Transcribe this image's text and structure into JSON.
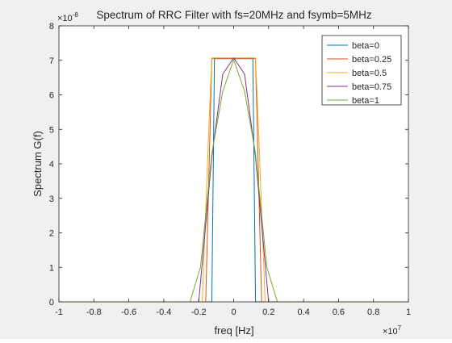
{
  "chart_data": {
    "type": "line",
    "title": "Spectrum of RRC Filter with fs=20MHz and fsymb=5MHz",
    "xlabel": "freq [Hz]",
    "ylabel": "Spectrum G(f)",
    "x_exponent_label": "×10",
    "x_exponent": "7",
    "y_exponent_label": "×10",
    "y_exponent": "-8",
    "xlim": [
      -1,
      1
    ],
    "ylim": [
      0,
      8
    ],
    "xticks": [
      -1,
      -0.8,
      -0.6,
      -0.4,
      -0.2,
      0,
      0.2,
      0.4,
      0.6,
      0.8,
      1
    ],
    "xtick_labels": [
      "-1",
      "-0.8",
      "-0.6",
      "-0.4",
      "-0.2",
      "0",
      "0.2",
      "0.4",
      "0.6",
      "0.8",
      "1"
    ],
    "yticks": [
      0,
      1,
      2,
      3,
      4,
      5,
      6,
      7,
      8
    ],
    "ytick_labels": [
      "0",
      "1",
      "2",
      "3",
      "4",
      "5",
      "6",
      "7",
      "8"
    ],
    "grid": false,
    "legend_position": "top-right",
    "series": [
      {
        "name": "beta=0",
        "color": "#0072bd",
        "x": [
          -1,
          -0.125,
          -0.11,
          0.11,
          0.125,
          1
        ],
        "y": [
          0,
          0,
          7.05,
          7.05,
          0,
          0
        ]
      },
      {
        "name": "beta=0.25",
        "color": "#d95319",
        "x": [
          -1,
          -0.16,
          -0.125,
          0.125,
          0.16,
          1
        ],
        "y": [
          0,
          0,
          7.05,
          7.05,
          0,
          0
        ]
      },
      {
        "name": "beta=0.5",
        "color": "#edb120",
        "x": [
          -1,
          -0.18,
          -0.14,
          -0.125,
          0.125,
          0.14,
          0.18,
          1
        ],
        "y": [
          0,
          0,
          5.3,
          7.07,
          7.07,
          5.3,
          0,
          0
        ]
      },
      {
        "name": "beta=0.75",
        "color": "#7e2f8e",
        "x": [
          -1,
          -0.2,
          -0.125,
          -0.0625,
          0,
          0.0625,
          0.125,
          0.2,
          1
        ],
        "y": [
          0,
          0,
          4.2,
          6.6,
          7.07,
          6.6,
          4.2,
          0,
          0
        ]
      },
      {
        "name": "beta=1",
        "color": "#77ac30",
        "x": [
          -1,
          -0.25,
          -0.19,
          -0.125,
          -0.0625,
          0,
          0.0625,
          0.125,
          0.19,
          0.25,
          1
        ],
        "y": [
          0,
          0,
          1.0,
          4.3,
          6.1,
          7.02,
          6.1,
          4.3,
          1.0,
          0,
          0
        ]
      }
    ]
  }
}
